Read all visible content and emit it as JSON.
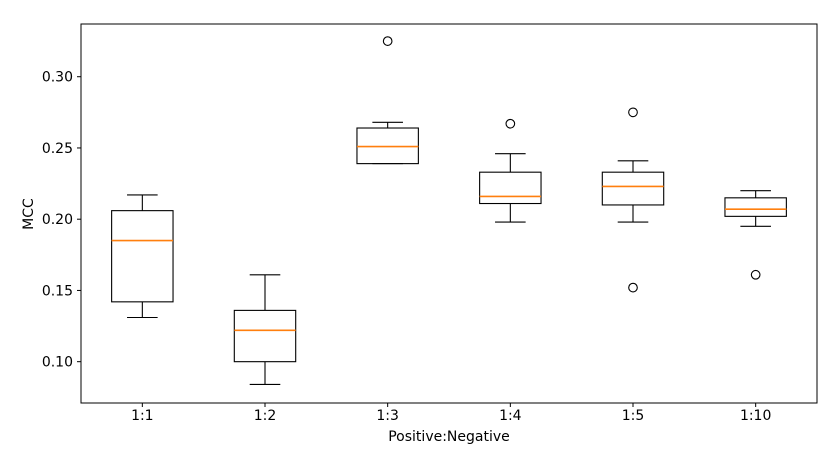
{
  "figure": {
    "background": "#ffffff"
  },
  "chart_data": {
    "type": "box",
    "title": "",
    "xlabel": "Positive:Negative",
    "ylabel": "MCC",
    "categories": [
      "1:1",
      "1:2",
      "1:3",
      "1:4",
      "1:5",
      "1:10"
    ],
    "ytick_values": [
      0.1,
      0.15,
      0.2,
      0.25,
      0.3
    ],
    "ytick_labels": [
      "0.10",
      "0.15",
      "0.20",
      "0.25",
      "0.30"
    ],
    "ylim": [
      0.071,
      0.337
    ],
    "xlim": [
      0.5,
      6.5
    ],
    "grid": false,
    "legend": null,
    "boxes": [
      {
        "label": "1:1",
        "whislo": 0.131,
        "q1": 0.142,
        "med": 0.185,
        "q3": 0.206,
        "whishi": 0.217,
        "fliers": []
      },
      {
        "label": "1:2",
        "whislo": 0.084,
        "q1": 0.1,
        "med": 0.122,
        "q3": 0.136,
        "whishi": 0.161,
        "fliers": []
      },
      {
        "label": "1:3",
        "whislo": 0.239,
        "q1": 0.239,
        "med": 0.251,
        "q3": 0.264,
        "whishi": 0.268,
        "fliers": [
          0.325
        ]
      },
      {
        "label": "1:4",
        "whislo": 0.198,
        "q1": 0.211,
        "med": 0.216,
        "q3": 0.233,
        "whishi": 0.246,
        "fliers": [
          0.267
        ]
      },
      {
        "label": "1:5",
        "whislo": 0.198,
        "q1": 0.21,
        "med": 0.223,
        "q3": 0.233,
        "whishi": 0.241,
        "fliers": [
          0.275,
          0.152
        ]
      },
      {
        "label": "1:10",
        "whislo": 0.195,
        "q1": 0.202,
        "med": 0.207,
        "q3": 0.215,
        "whishi": 0.22,
        "fliers": [
          0.161
        ]
      }
    ],
    "colors": {
      "line": "#000000",
      "median": "#ff7f0e",
      "background": "#ffffff"
    }
  }
}
